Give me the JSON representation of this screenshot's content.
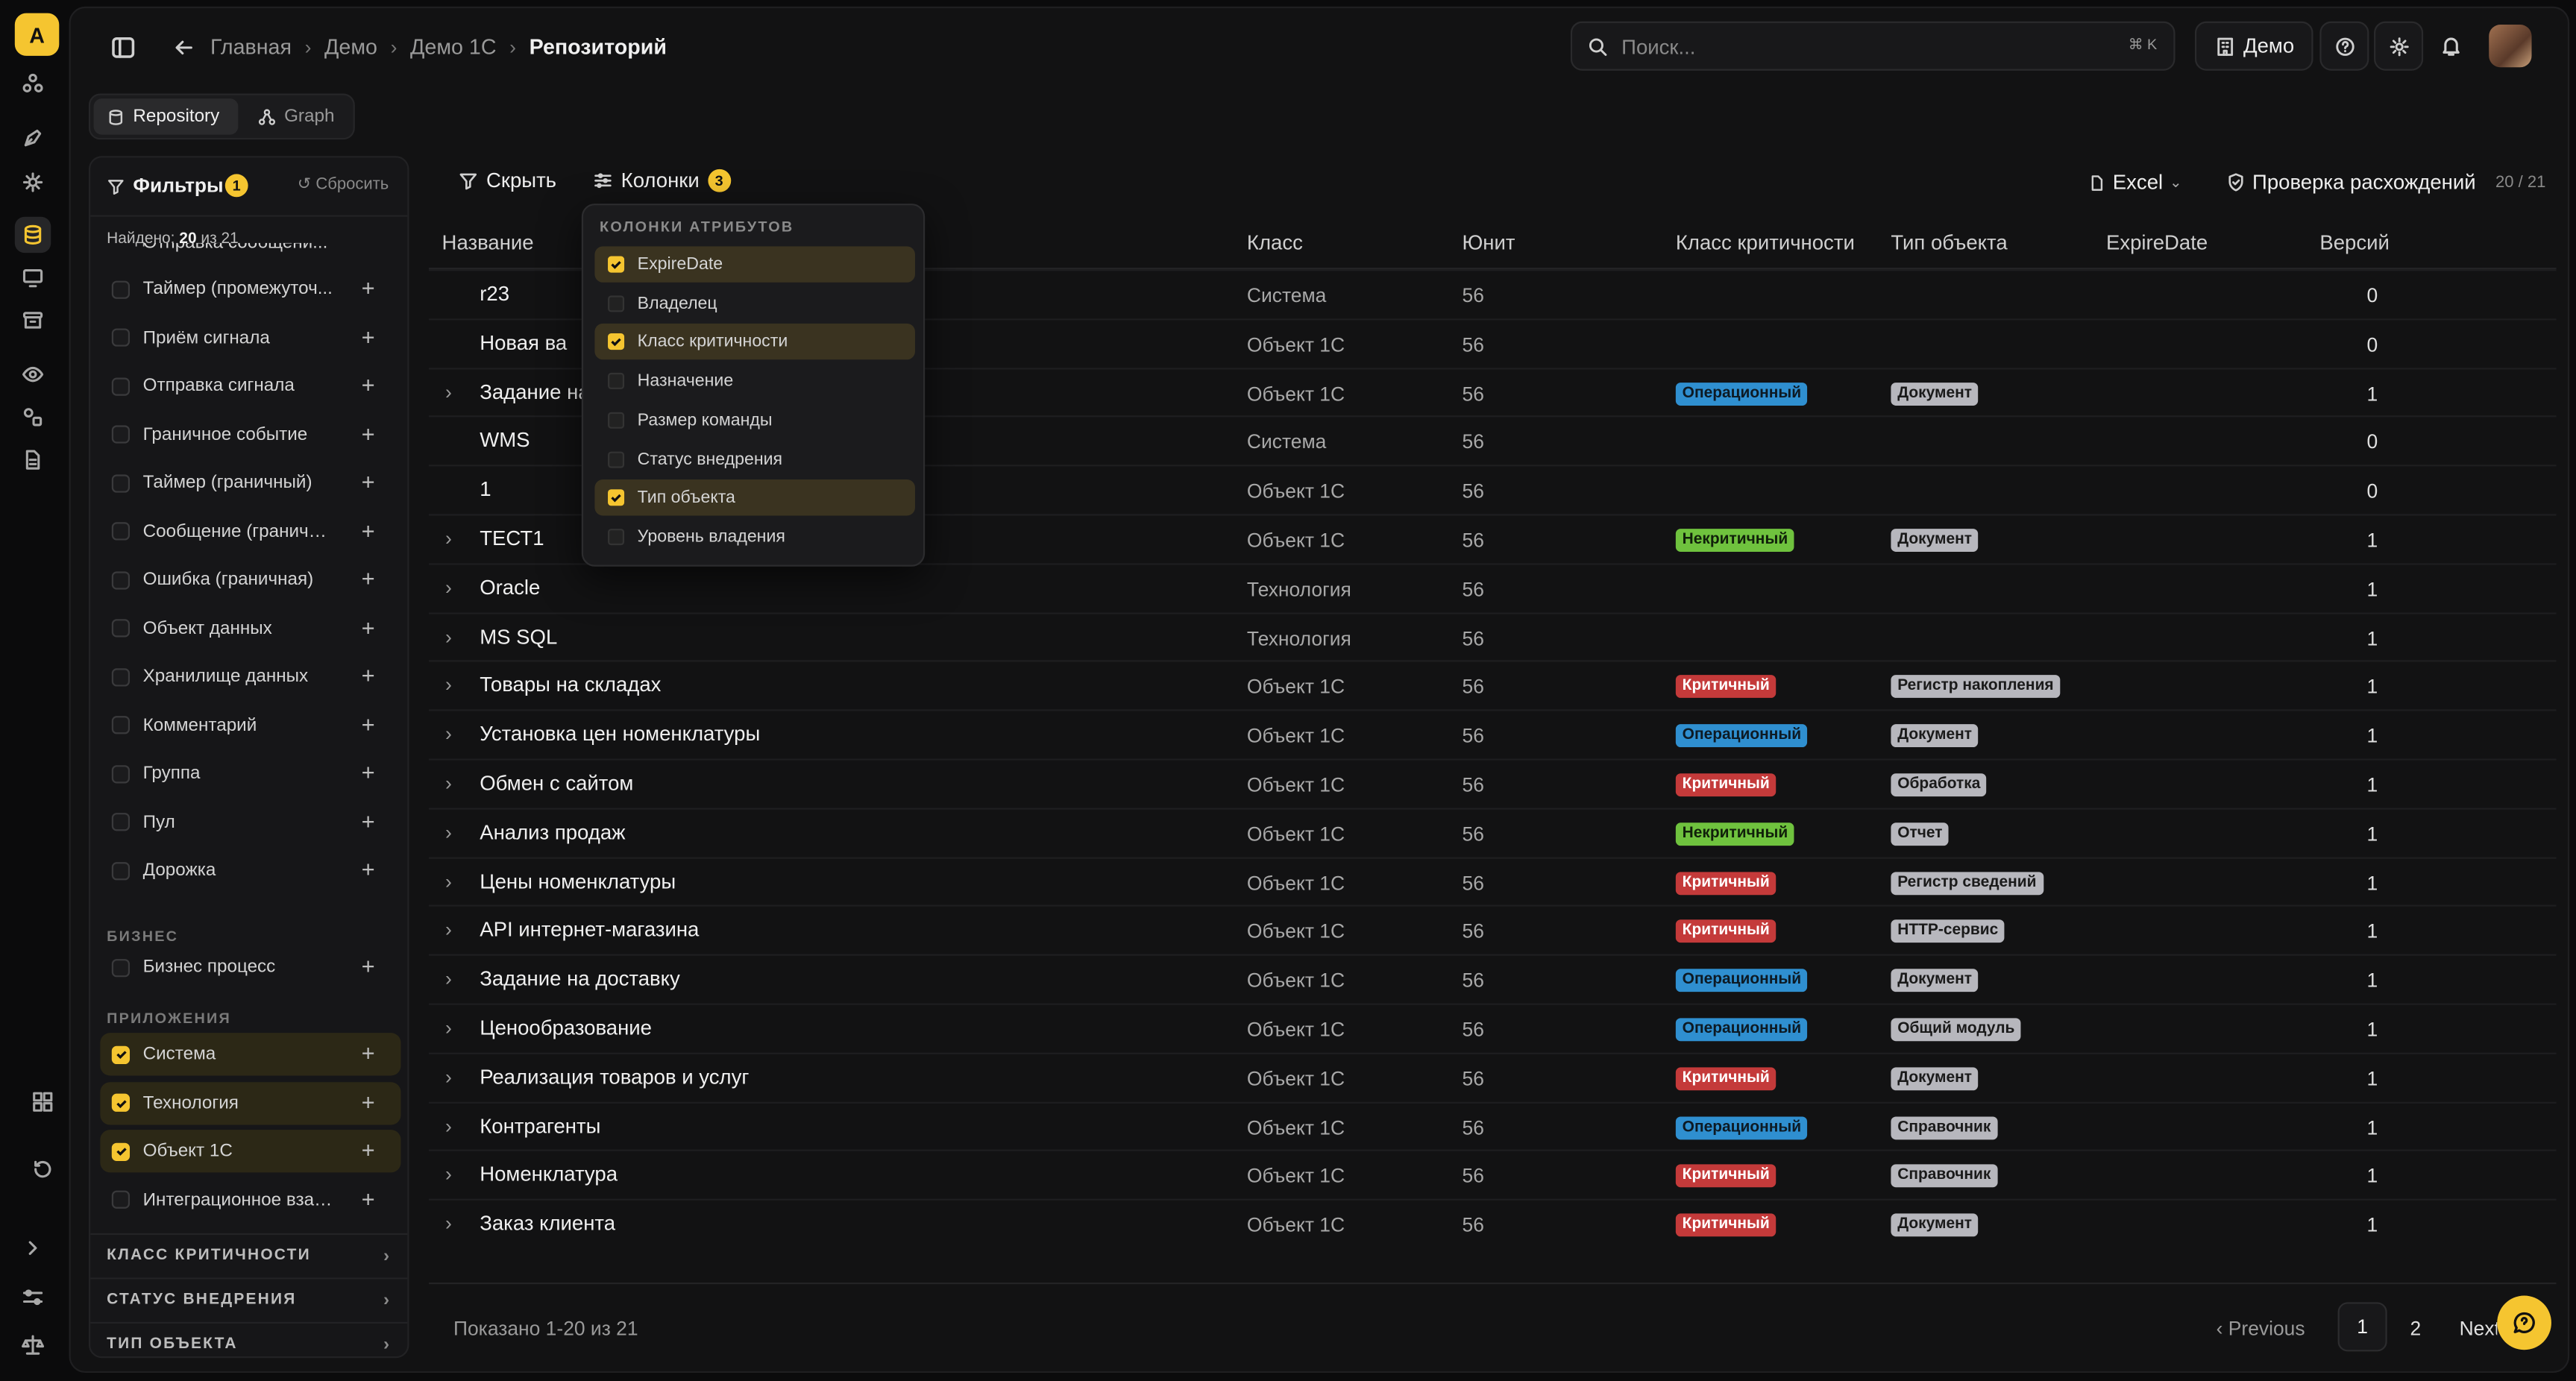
{
  "user_initial": "A",
  "breadcrumb": [
    "Главная",
    "Демо",
    "Демо 1С",
    "Репозиторий"
  ],
  "search": {
    "placeholder": "Поиск...",
    "shortcut": "⌘ K"
  },
  "workspace_button": "Демо",
  "view_tabs": [
    {
      "label": "Repository",
      "active": true
    },
    {
      "label": "Graph",
      "active": false
    }
  ],
  "filters": {
    "title": "Фильтры",
    "badge": "1",
    "reset": "Сбросить",
    "found_prefix": "Найдено:",
    "found_count": "20",
    "found_suffix": "из 21",
    "cut_item": "Отправка сообщени...",
    "items": [
      {
        "label": "Таймер (промежуточ...",
        "checked": false
      },
      {
        "label": "Приём сигнала",
        "checked": false
      },
      {
        "label": "Отправка сигнала",
        "checked": false
      },
      {
        "label": "Граничное событие",
        "checked": false
      },
      {
        "label": "Таймер (граничный)",
        "checked": false
      },
      {
        "label": "Сообщение (граничн...",
        "checked": false
      },
      {
        "label": "Ошибка (граничная)",
        "checked": false
      },
      {
        "label": "Объект данных",
        "checked": false
      },
      {
        "label": "Хранилище данных",
        "checked": false
      },
      {
        "label": "Комментарий",
        "checked": false
      },
      {
        "label": "Группа",
        "checked": false
      },
      {
        "label": "Пул",
        "checked": false
      },
      {
        "label": "Дорожка",
        "checked": false
      }
    ],
    "section_business": "БИЗНЕС",
    "business_items": [
      {
        "label": "Бизнес процесс",
        "checked": false
      }
    ],
    "section_apps": "ПРИЛОЖЕНИЯ",
    "app_items": [
      {
        "label": "Система",
        "checked": true
      },
      {
        "label": "Технология",
        "checked": true
      },
      {
        "label": "Объект 1С",
        "checked": true
      },
      {
        "label": "Интеграционное взаи...",
        "checked": false
      }
    ],
    "accordions": [
      "КЛАСС КРИТИЧНОСТИ",
      "СТАТУС ВНЕДРЕНИЯ",
      "ТИП ОБЪЕКТА"
    ]
  },
  "toolbar": {
    "hide": "Скрыть",
    "columns": "Колонки",
    "columns_count": "3",
    "export": "Excel",
    "check": "Проверка расхождений",
    "pager_summary": "20 / 21"
  },
  "columns_menu": {
    "title": "КОЛОНКИ АТРИБУТОВ",
    "items": [
      {
        "label": "ExpireDate",
        "checked": true
      },
      {
        "label": "Владелец",
        "checked": false
      },
      {
        "label": "Класс критичности",
        "checked": true
      },
      {
        "label": "Назначение",
        "checked": false
      },
      {
        "label": "Размер команды",
        "checked": false
      },
      {
        "label": "Статус внедрения",
        "checked": false
      },
      {
        "label": "Тип объекта",
        "checked": true
      },
      {
        "label": "Уровень владения",
        "checked": false
      }
    ]
  },
  "table": {
    "headers": [
      "Название",
      "Класс",
      "Юнит",
      "Класс критичности",
      "Тип объекта",
      "ExpireDate",
      "Версий"
    ],
    "rows": [
      {
        "name": "r23",
        "expand": false,
        "class": "Система",
        "unit": "56",
        "crit": "",
        "crit_kind": "",
        "type": "",
        "versions": "0"
      },
      {
        "name": "Новая ва",
        "expand": false,
        "class": "Объект 1С",
        "unit": "56",
        "crit": "",
        "crit_kind": "",
        "type": "",
        "versions": "0"
      },
      {
        "name": "Задание на",
        "expand": true,
        "class": "Объект 1С",
        "unit": "56",
        "crit": "Операционный",
        "crit_kind": "op",
        "type": "Документ",
        "versions": "1"
      },
      {
        "name": "WMS",
        "expand": false,
        "class": "Система",
        "unit": "56",
        "crit": "",
        "crit_kind": "",
        "type": "",
        "versions": "0"
      },
      {
        "name": "1",
        "expand": false,
        "class": "Объект 1С",
        "unit": "56",
        "crit": "",
        "crit_kind": "",
        "type": "",
        "versions": "0"
      },
      {
        "name": "ТЕСТ1",
        "expand": true,
        "class": "Объект 1С",
        "unit": "56",
        "crit": "Некритичный",
        "crit_kind": "non",
        "type": "Документ",
        "versions": "1"
      },
      {
        "name": "Oracle",
        "expand": true,
        "class": "Технология",
        "unit": "56",
        "crit": "",
        "crit_kind": "",
        "type": "",
        "versions": "1"
      },
      {
        "name": "MS SQL",
        "expand": true,
        "class": "Технология",
        "unit": "56",
        "crit": "",
        "crit_kind": "",
        "type": "",
        "versions": "1"
      },
      {
        "name": "Товары на складах",
        "expand": true,
        "class": "Объект 1С",
        "unit": "56",
        "crit": "Критичный",
        "crit_kind": "crit",
        "type": "Регистр накопления",
        "versions": "1"
      },
      {
        "name": "Установка цен номенклатуры",
        "expand": true,
        "class": "Объект 1С",
        "unit": "56",
        "crit": "Операционный",
        "crit_kind": "op",
        "type": "Документ",
        "versions": "1"
      },
      {
        "name": "Обмен с сайтом",
        "expand": true,
        "class": "Объект 1С",
        "unit": "56",
        "crit": "Критичный",
        "crit_kind": "crit",
        "type": "Обработка",
        "versions": "1"
      },
      {
        "name": "Анализ продаж",
        "expand": true,
        "class": "Объект 1С",
        "unit": "56",
        "crit": "Некритичный",
        "crit_kind": "non",
        "type": "Отчет",
        "versions": "1"
      },
      {
        "name": "Цены номенклатуры",
        "expand": true,
        "class": "Объект 1С",
        "unit": "56",
        "crit": "Критичный",
        "crit_kind": "crit",
        "type": "Регистр сведений",
        "versions": "1"
      },
      {
        "name": "API интернет-магазина",
        "expand": true,
        "class": "Объект 1С",
        "unit": "56",
        "crit": "Критичный",
        "crit_kind": "crit",
        "type": "HTTP-сервис",
        "versions": "1"
      },
      {
        "name": "Задание на доставку",
        "expand": true,
        "class": "Объект 1С",
        "unit": "56",
        "crit": "Операционный",
        "crit_kind": "op",
        "type": "Документ",
        "versions": "1"
      },
      {
        "name": "Ценообразование",
        "expand": true,
        "class": "Объект 1С",
        "unit": "56",
        "crit": "Операционный",
        "crit_kind": "op",
        "type": "Общий модуль",
        "versions": "1"
      },
      {
        "name": "Реализация товаров и услуг",
        "expand": true,
        "class": "Объект 1С",
        "unit": "56",
        "crit": "Критичный",
        "crit_kind": "crit",
        "type": "Документ",
        "versions": "1"
      },
      {
        "name": "Контрагенты",
        "expand": true,
        "class": "Объект 1С",
        "unit": "56",
        "crit": "Операционный",
        "crit_kind": "op",
        "type": "Справочник",
        "versions": "1"
      },
      {
        "name": "Номенклатура",
        "expand": true,
        "class": "Объект 1С",
        "unit": "56",
        "crit": "Критичный",
        "crit_kind": "crit",
        "type": "Справочник",
        "versions": "1"
      },
      {
        "name": "Заказ клиента",
        "expand": true,
        "class": "Объект 1С",
        "unit": "56",
        "crit": "Критичный",
        "crit_kind": "crit",
        "type": "Документ",
        "versions": "1"
      }
    ]
  },
  "footer": {
    "shown": "Показано 1-20 из 21",
    "previous": "Previous",
    "pages": [
      "1",
      "2"
    ],
    "next": "Next"
  },
  "colors": {
    "accent": "#f5c530",
    "op": "#2f8fd0",
    "non": "#6fc23e",
    "crit": "#c43a3a",
    "type": "#b7b7bd"
  }
}
